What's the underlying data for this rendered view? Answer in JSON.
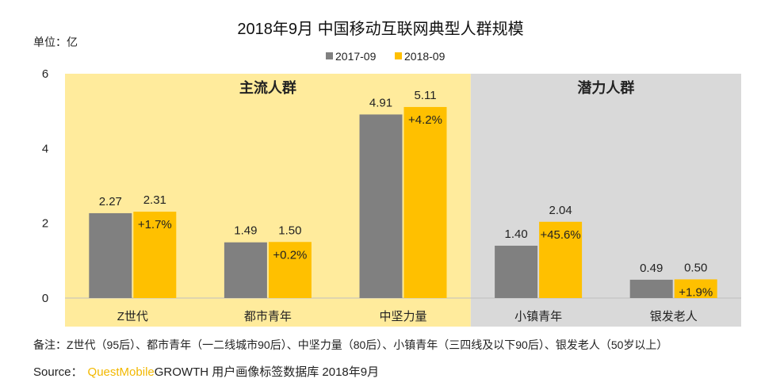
{
  "chart_data": {
    "type": "bar",
    "title": "2018年9月 中国移动互联网典型人群规模",
    "unit_label": "单位：亿",
    "ylim": [
      0,
      6
    ],
    "yticks": [
      "0",
      "2",
      "4",
      "6"
    ],
    "grid": false,
    "legend_position": "top-center",
    "categories": [
      "Z世代",
      "都市青年",
      "中坚力量",
      "小镇青年",
      "银发老人"
    ],
    "series": [
      {
        "name": "2017-09",
        "color": "#808080",
        "values": [
          2.27,
          1.49,
          4.91,
          1.4,
          0.49
        ],
        "labels": [
          "2.27",
          "1.49",
          "4.91",
          "1.40",
          "0.49"
        ]
      },
      {
        "name": "2018-09",
        "color": "#ffc000",
        "values": [
          2.31,
          1.5,
          5.11,
          2.04,
          0.5
        ],
        "labels": [
          "2.31",
          "1.50",
          "5.11",
          "2.04",
          "0.50"
        ]
      }
    ],
    "growth_labels": [
      "+1.7%",
      "+0.2%",
      "+4.2%",
      "+45.6%",
      "+1.9%"
    ],
    "groups": [
      {
        "label": "主流人群",
        "color": "#ffeb9c",
        "categories": [
          0,
          1,
          2
        ]
      },
      {
        "label": "潜力人群",
        "color": "#d9d9d9",
        "categories": [
          3,
          4
        ]
      }
    ]
  },
  "footnote": "备注：Z世代（95后）、都市青年（一二线城市90后）、中坚力量（80后）、小镇青年（三四线及以下90后）、银发老人（50岁以上）",
  "source": {
    "prefix": "Source：",
    "brand": "QuestMobile",
    "rest": "GROWTH 用户画像标签数据库 2018年9月"
  }
}
